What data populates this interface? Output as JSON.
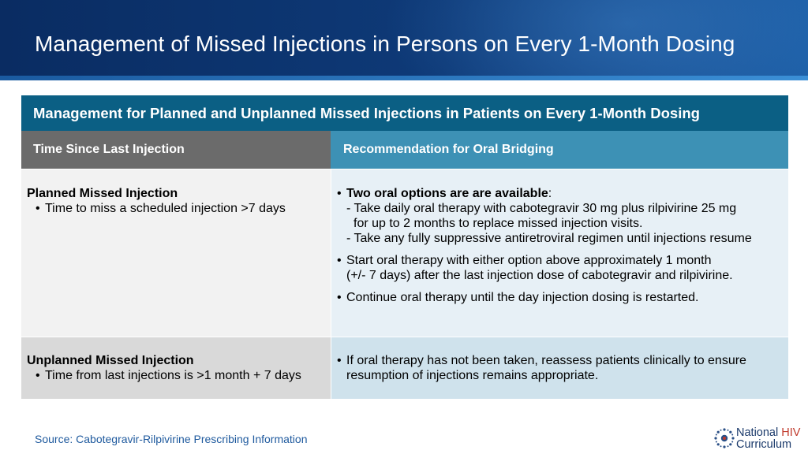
{
  "slide": {
    "title": "Management of Missed Injections in Persons on Every 1-Month Dosing"
  },
  "table": {
    "title": "Management for Planned and Unplanned Missed Injections in Patients on Every 1-Month Dosing",
    "headers": {
      "left": "Time Since Last Injection",
      "right": "Recommendation for Oral Bridging"
    },
    "rows": [
      {
        "label": "Planned Missed Injection",
        "sub_bullet": "Time to miss a scheduled injection >7 days",
        "recommendations": {
          "b1_bold": "Two oral options are are available",
          "b1_colon": ":",
          "b1_opt1_line1": "- Take daily oral therapy with cabotegravir 30 mg plus rilpivirine 25 mg",
          "b1_opt1_line2": "for up to 2 months to replace missed injection visits.",
          "b1_opt2": "- Take any fully suppressive antiretroviral regimen until injections resume",
          "b2_line1": "Start oral therapy with either option above approximately 1 month",
          "b2_line2": "(+/- 7 days) after the last injection dose of cabotegravir and rilpivirine.",
          "b3": "Continue oral therapy until the day injection dosing is restarted."
        }
      },
      {
        "label": "Unplanned Missed Injection",
        "sub_bullet": "Time from last injections is >1 month + 7 days",
        "recommendations": {
          "b1_line1": "If oral therapy has not been taken, reassess patients clinically to ensure",
          "b1_line2": "resumption of injections remains appropriate."
        }
      }
    ]
  },
  "footer": {
    "source": "Source: Cabotegravir-Rilpivirine Prescribing Information",
    "logo_word1": "National",
    "logo_word2": "HIV",
    "logo_word3": "Curriculum",
    "bullet_char": "•"
  },
  "colors": {
    "header_bg": "#0e3a78",
    "table_title_bg": "#0b5f84",
    "left_header_bg": "#6b6b6b",
    "right_header_bg": "#3d91b5",
    "logo_hiv": "#c0392b"
  }
}
